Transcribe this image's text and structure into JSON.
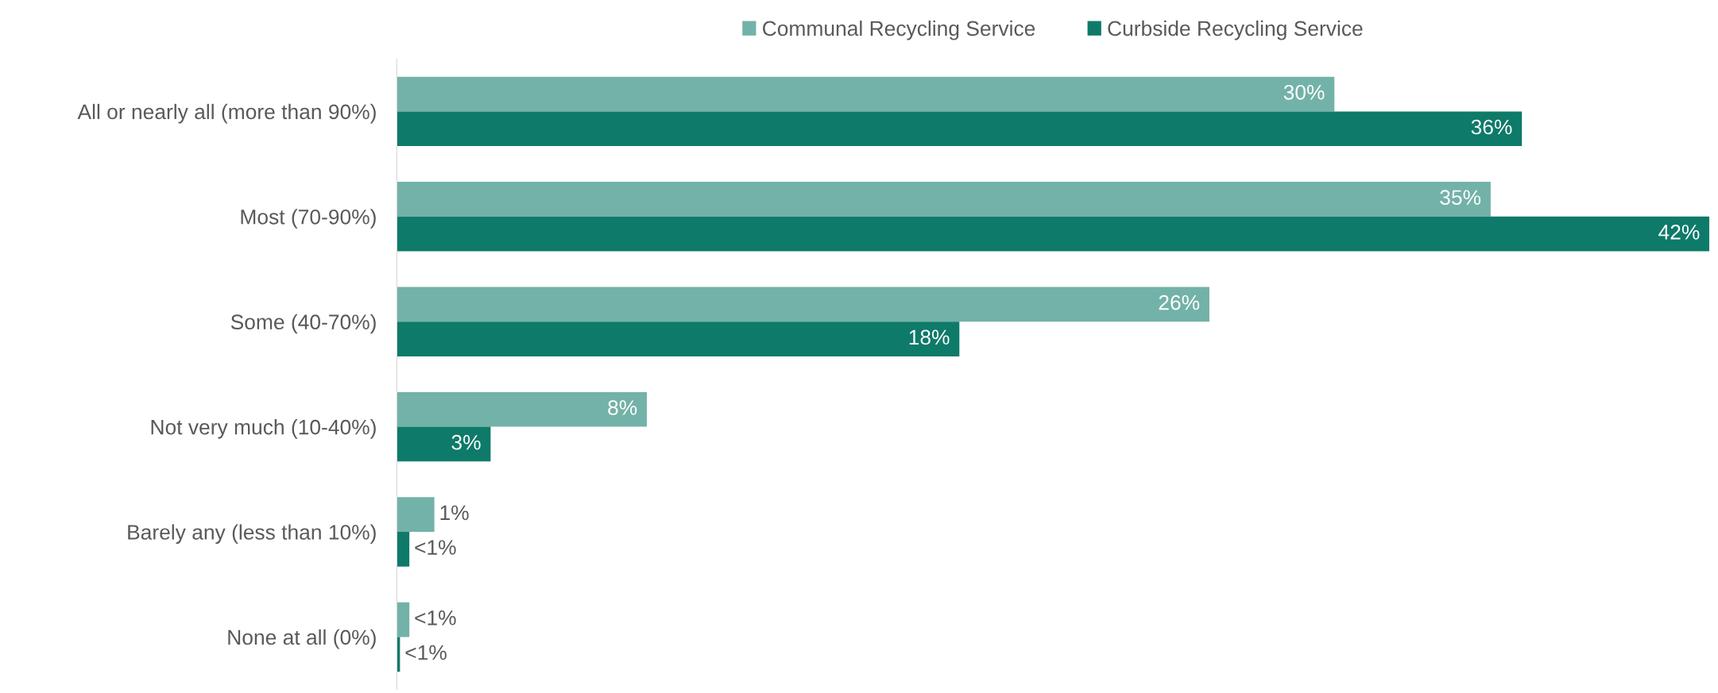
{
  "chart_data": {
    "type": "bar",
    "orientation": "horizontal",
    "legend": "top",
    "grid": false,
    "tick_labels": "y",
    "categories": [
      "All or nearly all (more than 90%)",
      "Most (70-90%)",
      "Some (40-70%)",
      "Not very much (10-40%)",
      "Barely any (less than 10%)",
      "None at all (0%)"
    ],
    "xlim": [
      0,
      42
    ],
    "series": [
      {
        "name": "Communal Recycling Service",
        "color": "#73b2a8",
        "values": [
          30,
          35,
          26,
          8,
          1.2,
          0.4
        ],
        "value_labels": [
          "30%",
          "35%",
          "26%",
          "8%",
          "1%",
          "<1%"
        ]
      },
      {
        "name": "Curbside Recycling Service",
        "color": "#0e7a6a",
        "values": [
          36,
          42,
          18,
          3,
          0.4,
          0.1
        ],
        "value_labels": [
          "36%",
          "42%",
          "18%",
          "3%",
          "<1%",
          "<1%"
        ]
      }
    ]
  }
}
